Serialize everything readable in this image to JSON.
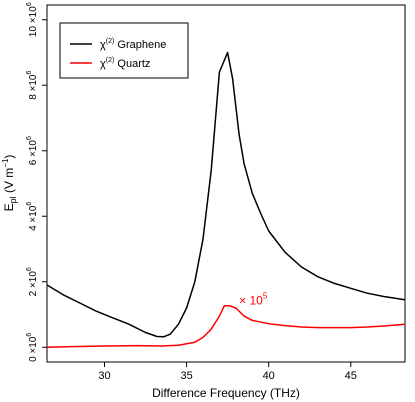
{
  "chart_data": {
    "type": "line",
    "title": "",
    "xlabel": "Difference Frequency (THz)",
    "ylabel": {
      "main": "E",
      "sub": "pl",
      "unit_open": " (V m",
      "unit_exp": "−1",
      "unit_close": ")"
    },
    "xlim": [
      26.5,
      48.3
    ],
    "ylim": [
      -0.45,
      10.45
    ],
    "y_scale_note": "×10^6",
    "xticks": [
      {
        "value": 30,
        "label": "30"
      },
      {
        "value": 35,
        "label": "35"
      },
      {
        "value": 40,
        "label": "40"
      },
      {
        "value": 45,
        "label": "45"
      }
    ],
    "yticks": [
      {
        "value": 0,
        "mant": "0",
        "exp": "6"
      },
      {
        "value": 2,
        "mant": "2",
        "exp": "6"
      },
      {
        "value": 4,
        "mant": "4",
        "exp": "6"
      },
      {
        "value": 6,
        "mant": "6",
        "exp": "6"
      },
      {
        "value": 8,
        "mant": "8",
        "exp": "6"
      },
      {
        "value": 10,
        "mant": "10",
        "exp": "6"
      }
    ],
    "ytick_times": "×10",
    "grid": false,
    "legend_position": "top-left",
    "series": [
      {
        "name": "χ(2) Graphene",
        "label_main": "χ",
        "label_sup": "(2)",
        "label_rest": " Graphene",
        "color": "#000000",
        "x": [
          26.5,
          27.5,
          28.5,
          29.5,
          30.5,
          31.5,
          32.5,
          33.2,
          33.6,
          34.0,
          34.5,
          35.0,
          35.5,
          36.0,
          36.5,
          37.0,
          37.5,
          37.8,
          38.2,
          38.5,
          39.0,
          39.5,
          40.0,
          41.0,
          42.0,
          43.0,
          44.0,
          45.0,
          46.0,
          47.0,
          48.3
        ],
        "y": [
          1.9,
          1.6,
          1.35,
          1.1,
          0.9,
          0.7,
          0.45,
          0.33,
          0.32,
          0.4,
          0.7,
          1.2,
          2.0,
          3.3,
          5.4,
          8.4,
          9.0,
          8.2,
          6.5,
          5.6,
          4.7,
          4.1,
          3.55,
          2.9,
          2.45,
          2.15,
          1.95,
          1.8,
          1.65,
          1.55,
          1.45
        ]
      },
      {
        "name": "χ(2) Quartz",
        "label_main": "χ",
        "label_sup": "(2)",
        "label_rest": " Quartz",
        "color": "#ff0000",
        "x": [
          26.5,
          28.0,
          30.0,
          32.0,
          33.5,
          34.5,
          35.5,
          36.0,
          36.5,
          37.0,
          37.3,
          37.6,
          38.0,
          38.5,
          39.0,
          40.0,
          41.0,
          42.0,
          43.0,
          44.0,
          45.0,
          46.0,
          47.0,
          48.3
        ],
        "y": [
          0.0,
          0.02,
          0.04,
          0.05,
          0.04,
          0.06,
          0.15,
          0.3,
          0.55,
          0.95,
          1.27,
          1.27,
          1.2,
          0.95,
          0.82,
          0.72,
          0.66,
          0.62,
          0.6,
          0.6,
          0.6,
          0.62,
          0.65,
          0.7
        ]
      }
    ],
    "annotations": [
      {
        "text_main": "× 10",
        "text_sup": "5",
        "x": 38.2,
        "y": 1.3,
        "color": "#ff0000"
      }
    ]
  }
}
